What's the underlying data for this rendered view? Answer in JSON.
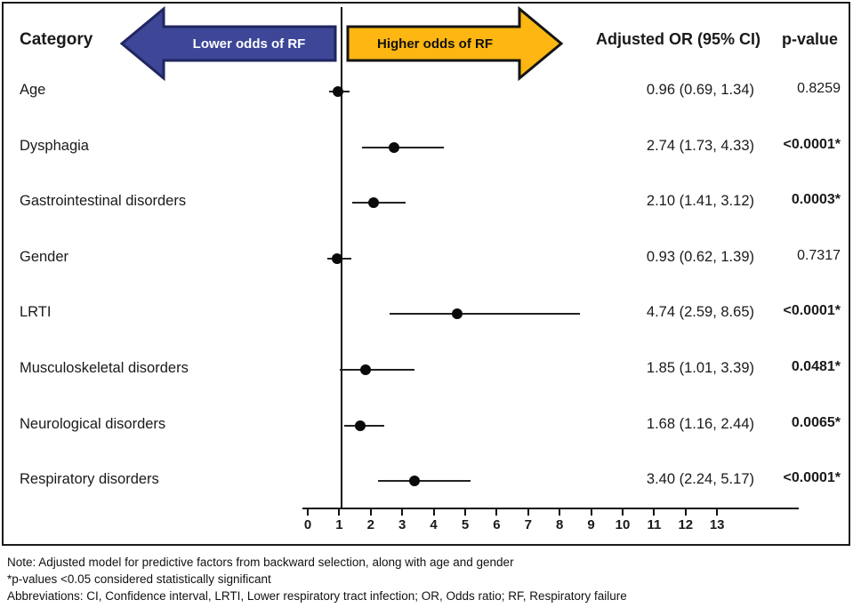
{
  "header": {
    "category_label": "Category",
    "left_arrow_label": "Lower odds of RF",
    "right_arrow_label": "Higher odds of RF",
    "or_ci_header": "Adjusted OR (95% CI)",
    "p_value_header": "p-value"
  },
  "colors": {
    "left_arrow_fill": "#3d4697",
    "left_arrow_border": "#20265f",
    "right_arrow_fill": "#fdb612",
    "right_arrow_border": "#141414",
    "axis_color": "#111111",
    "dot_color": "#0a0a0a"
  },
  "chart_data": {
    "type": "forest",
    "title": "",
    "xlabel": "",
    "axis_range": [
      0,
      13
    ],
    "ticks": [
      0,
      1,
      2,
      3,
      4,
      5,
      6,
      7,
      8,
      9,
      10,
      11,
      12,
      13
    ],
    "reference_line_x": 1,
    "rows": [
      {
        "category": "Age",
        "or": 0.96,
        "ci_low": 0.69,
        "ci_high": 1.34,
        "or_ci_text": "0.96 (0.69, 1.34)",
        "p_value": "0.8259",
        "significant": false
      },
      {
        "category": "Dysphagia",
        "or": 2.74,
        "ci_low": 1.73,
        "ci_high": 4.33,
        "or_ci_text": "2.74 (1.73, 4.33)",
        "p_value": "<0.0001*",
        "significant": true
      },
      {
        "category": "Gastrointestinal disorders",
        "or": 2.1,
        "ci_low": 1.41,
        "ci_high": 3.12,
        "or_ci_text": "2.10 (1.41, 3.12)",
        "p_value": "0.0003*",
        "significant": true
      },
      {
        "category": "Gender",
        "or": 0.93,
        "ci_low": 0.62,
        "ci_high": 1.39,
        "or_ci_text": "0.93 (0.62, 1.39)",
        "p_value": "0.7317",
        "significant": false
      },
      {
        "category": "LRTI",
        "or": 4.74,
        "ci_low": 2.59,
        "ci_high": 8.65,
        "or_ci_text": "4.74 (2.59, 8.65)",
        "p_value": "<0.0001*",
        "significant": true
      },
      {
        "category": "Musculoskeletal disorders",
        "or": 1.85,
        "ci_low": 1.01,
        "ci_high": 3.39,
        "or_ci_text": "1.85 (1.01, 3.39)",
        "p_value": "0.0481*",
        "significant": true
      },
      {
        "category": "Neurological disorders",
        "or": 1.68,
        "ci_low": 1.16,
        "ci_high": 2.44,
        "or_ci_text": "1.68 (1.16, 2.44)",
        "p_value": "0.0065*",
        "significant": true
      },
      {
        "category": "Respiratory disorders",
        "or": 3.4,
        "ci_low": 2.24,
        "ci_high": 5.17,
        "or_ci_text": "3.40 (2.24, 5.17)",
        "p_value": "<0.0001*",
        "significant": true
      }
    ]
  },
  "footnotes": {
    "note": "Note: Adjusted model for predictive factors from backward selection, along with age and gender",
    "significance": "*p-values <0.05 considered statistically significant",
    "abbreviations": "Abbreviations: CI, Confidence interval, LRTI, Lower respiratory tract infection; OR, Odds ratio; RF, Respiratory failure"
  }
}
